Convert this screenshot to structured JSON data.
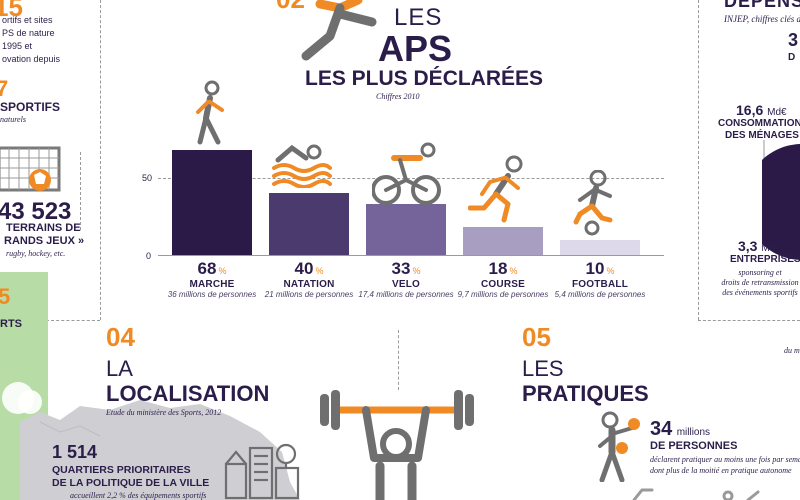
{
  "left_col": {
    "head_digits": "15",
    "lines": [
      "ortifs et sites",
      "PS de nature",
      "1995 et",
      "ovation depuis"
    ],
    "big7": "7",
    "sportifs_label": "SPORTIFS",
    "sportifs_sub": "naturels",
    "big_number": "43 523",
    "terrains_label": "TERRAINS DE",
    "grands_label": "RANDS JEUX »",
    "grands_sub": "rugby, hockey, etc.",
    "green_big": "5",
    "green_label": "RTS",
    "quartiers_num": "1 514",
    "quartiers_label1": "QUARTIERS PRIORITAIRES",
    "quartiers_label2": "DE LA POLITIQUE DE LA VILLE",
    "quartiers_sub": "accueillent 2,2 % des équipements sportifs"
  },
  "center": {
    "num": "02",
    "les": "LES",
    "aps": "APS",
    "subtitle": "LES PLUS DÉCLARÉES",
    "note": "Chiffres 2010"
  },
  "chart_data": {
    "type": "bar",
    "categories": [
      "MARCHE",
      "NATATION",
      "VELO",
      "COURSE",
      "FOOTBALL"
    ],
    "values": [
      68,
      40,
      33,
      18,
      10
    ],
    "percent_labels": [
      "68",
      "40",
      "33",
      "18",
      "10"
    ],
    "unit": "%",
    "subs": [
      "36 millions de personnes",
      "21 millions de personnes",
      "17,4 millions de personnes",
      "9,7 millions de personnes",
      "5,4 millions de personnes"
    ],
    "colors": [
      "#2b1a47",
      "#4b3a6e",
      "#74649a",
      "#a79ec2",
      "#ddd9ea"
    ],
    "yticks": [
      "50",
      "0"
    ],
    "ylim": [
      0,
      100
    ]
  },
  "right_col": {
    "title": "DÉPENSES",
    "sub": "INJEP, chiffres clés du",
    "edge_num": "3",
    "edge_d": "D",
    "conso_num": "16,6",
    "conso_unit": "Md€",
    "conso_label1": "CONSOMMATION",
    "conso_label2": "DES MÉNAGES",
    "entr_num": "3,3",
    "entr_unit": "Md€",
    "entr_label": "ENTREPRISES",
    "entr_sub1": "sponsoring et",
    "entr_sub2": "droits de retransmission",
    "entr_sub3": "des événements sportifs",
    "bottom_note": "du m"
  },
  "section04": {
    "num": "04",
    "line1": "LA",
    "line2": "LOCALISATION",
    "sub": "Etude du ministère des Sports, 2012"
  },
  "section05": {
    "num": "05",
    "line1": "LES",
    "line2": "PRATIQUES",
    "millions_num": "34",
    "millions_word": "millions",
    "personnes": "DE PERSONNES",
    "desc1": "déclarent pratiquer au moins une fois par semai",
    "desc2": "dont plus de la moitié en pratique autonome"
  }
}
